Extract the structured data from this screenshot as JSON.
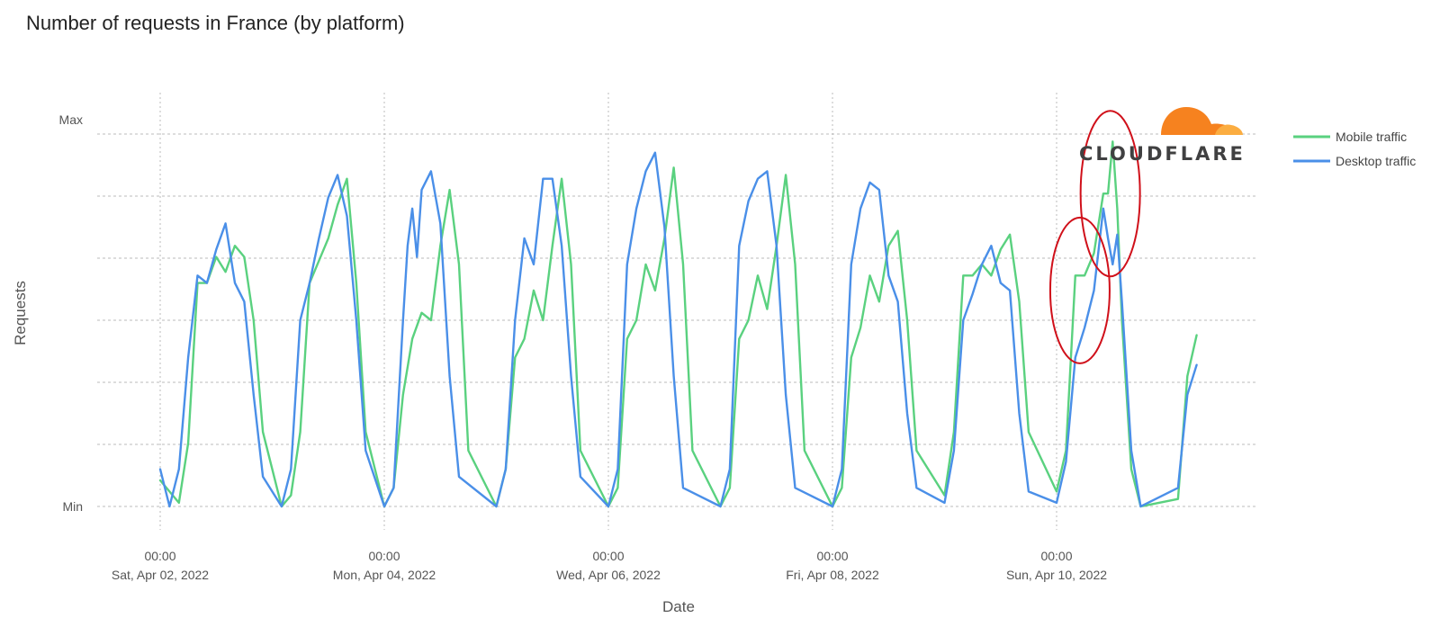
{
  "chart_data": {
    "type": "line",
    "title": "Number of requests in France (by platform)",
    "xlabel": "Date",
    "ylabel": "Requests",
    "y_ticks": [
      "Max",
      "Min"
    ],
    "x_ticks": [
      {
        "time": "00:00",
        "date": "Sat, Apr 02, 2022"
      },
      {
        "time": "00:00",
        "date": "Mon, Apr 04, 2022"
      },
      {
        "time": "00:00",
        "date": "Wed, Apr 06, 2022"
      },
      {
        "time": "00:00",
        "date": "Fri, Apr 08, 2022"
      },
      {
        "time": "00:00",
        "date": "Sun, Apr 10, 2022"
      }
    ],
    "x_range": [
      "2022-04-02T00:00",
      "2022-04-11T06:00"
    ],
    "y_range": [
      0,
      1
    ],
    "grid": true,
    "legend_position": "right",
    "series": [
      {
        "name": "Mobile traffic",
        "color": "#5ad17f",
        "points": [
          [
            "2022-04-02T00:00",
            0.07
          ],
          [
            "2022-04-02T04:00",
            0.01
          ],
          [
            "2022-04-02T06:00",
            0.17
          ],
          [
            "2022-04-02T08:00",
            0.6
          ],
          [
            "2022-04-02T10:00",
            0.6
          ],
          [
            "2022-04-02T12:00",
            0.67
          ],
          [
            "2022-04-02T14:00",
            0.63
          ],
          [
            "2022-04-02T16:00",
            0.7
          ],
          [
            "2022-04-02T18:00",
            0.67
          ],
          [
            "2022-04-02T20:00",
            0.5
          ],
          [
            "2022-04-02T22:00",
            0.2
          ],
          [
            "2022-04-03T02:00",
            0.0
          ],
          [
            "2022-04-03T04:00",
            0.03
          ],
          [
            "2022-04-03T06:00",
            0.2
          ],
          [
            "2022-04-03T08:00",
            0.6
          ],
          [
            "2022-04-03T10:00",
            0.66
          ],
          [
            "2022-04-03T12:00",
            0.72
          ],
          [
            "2022-04-03T14:00",
            0.81
          ],
          [
            "2022-04-03T16:00",
            0.88
          ],
          [
            "2022-04-03T17:00",
            0.74
          ],
          [
            "2022-04-03T18:00",
            0.6
          ],
          [
            "2022-04-03T20:00",
            0.2
          ],
          [
            "2022-04-04T00:00",
            0.0
          ],
          [
            "2022-04-04T02:00",
            0.05
          ],
          [
            "2022-04-04T04:00",
            0.3
          ],
          [
            "2022-04-04T06:00",
            0.45
          ],
          [
            "2022-04-04T08:00",
            0.52
          ],
          [
            "2022-04-04T10:00",
            0.5
          ],
          [
            "2022-04-04T12:00",
            0.7
          ],
          [
            "2022-04-04T14:00",
            0.85
          ],
          [
            "2022-04-04T16:00",
            0.65
          ],
          [
            "2022-04-04T18:00",
            0.15
          ],
          [
            "2022-04-05T00:00",
            0.0
          ],
          [
            "2022-04-05T02:00",
            0.1
          ],
          [
            "2022-04-05T04:00",
            0.4
          ],
          [
            "2022-04-05T06:00",
            0.45
          ],
          [
            "2022-04-05T08:00",
            0.58
          ],
          [
            "2022-04-05T10:00",
            0.5
          ],
          [
            "2022-04-05T12:00",
            0.7
          ],
          [
            "2022-04-05T14:00",
            0.88
          ],
          [
            "2022-04-05T16:00",
            0.65
          ],
          [
            "2022-04-05T18:00",
            0.15
          ],
          [
            "2022-04-06T00:00",
            0.0
          ],
          [
            "2022-04-06T02:00",
            0.05
          ],
          [
            "2022-04-06T04:00",
            0.45
          ],
          [
            "2022-04-06T06:00",
            0.5
          ],
          [
            "2022-04-06T08:00",
            0.65
          ],
          [
            "2022-04-06T10:00",
            0.58
          ],
          [
            "2022-04-06T12:00",
            0.72
          ],
          [
            "2022-04-06T14:00",
            0.91
          ],
          [
            "2022-04-06T16:00",
            0.65
          ],
          [
            "2022-04-06T18:00",
            0.15
          ],
          [
            "2022-04-07T00:00",
            0.0
          ],
          [
            "2022-04-07T02:00",
            0.05
          ],
          [
            "2022-04-07T04:00",
            0.45
          ],
          [
            "2022-04-07T06:00",
            0.5
          ],
          [
            "2022-04-07T08:00",
            0.62
          ],
          [
            "2022-04-07T10:00",
            0.53
          ],
          [
            "2022-04-07T12:00",
            0.7
          ],
          [
            "2022-04-07T14:00",
            0.89
          ],
          [
            "2022-04-07T16:00",
            0.65
          ],
          [
            "2022-04-07T18:00",
            0.15
          ],
          [
            "2022-04-08T00:00",
            0.0
          ],
          [
            "2022-04-08T02:00",
            0.05
          ],
          [
            "2022-04-08T04:00",
            0.4
          ],
          [
            "2022-04-08T06:00",
            0.48
          ],
          [
            "2022-04-08T08:00",
            0.62
          ],
          [
            "2022-04-08T10:00",
            0.55
          ],
          [
            "2022-04-08T12:00",
            0.7
          ],
          [
            "2022-04-08T14:00",
            0.74
          ],
          [
            "2022-04-08T16:00",
            0.5
          ],
          [
            "2022-04-08T18:00",
            0.15
          ],
          [
            "2022-04-09T00:00",
            0.03
          ],
          [
            "2022-04-09T02:00",
            0.2
          ],
          [
            "2022-04-09T04:00",
            0.62
          ],
          [
            "2022-04-09T06:00",
            0.62
          ],
          [
            "2022-04-09T08:00",
            0.65
          ],
          [
            "2022-04-09T10:00",
            0.62
          ],
          [
            "2022-04-09T12:00",
            0.69
          ],
          [
            "2022-04-09T14:00",
            0.73
          ],
          [
            "2022-04-09T16:00",
            0.55
          ],
          [
            "2022-04-09T18:00",
            0.2
          ],
          [
            "2022-04-10T00:00",
            0.04
          ],
          [
            "2022-04-10T02:00",
            0.15
          ],
          [
            "2022-04-10T04:00",
            0.62
          ],
          [
            "2022-04-10T06:00",
            0.62
          ],
          [
            "2022-04-10T08:00",
            0.68
          ],
          [
            "2022-04-10T10:00",
            0.84
          ],
          [
            "2022-04-10T11:00",
            0.84
          ],
          [
            "2022-04-10T12:00",
            0.98
          ],
          [
            "2022-04-10T13:00",
            0.8
          ],
          [
            "2022-04-10T14:00",
            0.5
          ],
          [
            "2022-04-10T16:00",
            0.1
          ],
          [
            "2022-04-10T18:00",
            0.0
          ],
          [
            "2022-04-11T02:00",
            0.02
          ],
          [
            "2022-04-11T04:00",
            0.35
          ],
          [
            "2022-04-11T06:00",
            0.46
          ]
        ]
      },
      {
        "name": "Desktop traffic",
        "color": "#4a8fe8",
        "points": [
          [
            "2022-04-02T00:00",
            0.1
          ],
          [
            "2022-04-02T02:00",
            0.0
          ],
          [
            "2022-04-02T04:00",
            0.1
          ],
          [
            "2022-04-02T06:00",
            0.4
          ],
          [
            "2022-04-02T08:00",
            0.62
          ],
          [
            "2022-04-02T10:00",
            0.6
          ],
          [
            "2022-04-02T12:00",
            0.69
          ],
          [
            "2022-04-02T14:00",
            0.76
          ],
          [
            "2022-04-02T16:00",
            0.6
          ],
          [
            "2022-04-02T18:00",
            0.55
          ],
          [
            "2022-04-02T20:00",
            0.3
          ],
          [
            "2022-04-02T22:00",
            0.08
          ],
          [
            "2022-04-03T02:00",
            0.0
          ],
          [
            "2022-04-03T04:00",
            0.1
          ],
          [
            "2022-04-03T06:00",
            0.5
          ],
          [
            "2022-04-03T08:00",
            0.6
          ],
          [
            "2022-04-03T10:00",
            0.72
          ],
          [
            "2022-04-03T12:00",
            0.83
          ],
          [
            "2022-04-03T14:00",
            0.89
          ],
          [
            "2022-04-03T16:00",
            0.78
          ],
          [
            "2022-04-03T18:00",
            0.5
          ],
          [
            "2022-04-03T20:00",
            0.15
          ],
          [
            "2022-04-04T00:00",
            0.0
          ],
          [
            "2022-04-04T02:00",
            0.05
          ],
          [
            "2022-04-04T04:00",
            0.5
          ],
          [
            "2022-04-04T05:00",
            0.7
          ],
          [
            "2022-04-04T06:00",
            0.8
          ],
          [
            "2022-04-04T07:00",
            0.67
          ],
          [
            "2022-04-04T08:00",
            0.85
          ],
          [
            "2022-04-04T10:00",
            0.9
          ],
          [
            "2022-04-04T12:00",
            0.76
          ],
          [
            "2022-04-04T14:00",
            0.35
          ],
          [
            "2022-04-04T16:00",
            0.08
          ],
          [
            "2022-04-05T00:00",
            0.0
          ],
          [
            "2022-04-05T02:00",
            0.1
          ],
          [
            "2022-04-05T04:00",
            0.5
          ],
          [
            "2022-04-05T06:00",
            0.72
          ],
          [
            "2022-04-05T08:00",
            0.65
          ],
          [
            "2022-04-05T10:00",
            0.88
          ],
          [
            "2022-04-05T12:00",
            0.88
          ],
          [
            "2022-04-05T14:00",
            0.7
          ],
          [
            "2022-04-05T16:00",
            0.35
          ],
          [
            "2022-04-05T18:00",
            0.08
          ],
          [
            "2022-04-06T00:00",
            0.0
          ],
          [
            "2022-04-06T02:00",
            0.1
          ],
          [
            "2022-04-06T04:00",
            0.65
          ],
          [
            "2022-04-06T06:00",
            0.8
          ],
          [
            "2022-04-06T08:00",
            0.9
          ],
          [
            "2022-04-06T10:00",
            0.95
          ],
          [
            "2022-04-06T12:00",
            0.75
          ],
          [
            "2022-04-06T14:00",
            0.35
          ],
          [
            "2022-04-06T16:00",
            0.05
          ],
          [
            "2022-04-07T00:00",
            0.0
          ],
          [
            "2022-04-07T02:00",
            0.1
          ],
          [
            "2022-04-07T04:00",
            0.7
          ],
          [
            "2022-04-07T06:00",
            0.82
          ],
          [
            "2022-04-07T08:00",
            0.88
          ],
          [
            "2022-04-07T10:00",
            0.9
          ],
          [
            "2022-04-07T12:00",
            0.7
          ],
          [
            "2022-04-07T14:00",
            0.3
          ],
          [
            "2022-04-07T16:00",
            0.05
          ],
          [
            "2022-04-08T00:00",
            0.0
          ],
          [
            "2022-04-08T02:00",
            0.1
          ],
          [
            "2022-04-08T04:00",
            0.65
          ],
          [
            "2022-04-08T06:00",
            0.8
          ],
          [
            "2022-04-08T08:00",
            0.87
          ],
          [
            "2022-04-08T10:00",
            0.85
          ],
          [
            "2022-04-08T12:00",
            0.62
          ],
          [
            "2022-04-08T14:00",
            0.55
          ],
          [
            "2022-04-08T16:00",
            0.25
          ],
          [
            "2022-04-08T18:00",
            0.05
          ],
          [
            "2022-04-09T00:00",
            0.01
          ],
          [
            "2022-04-09T02:00",
            0.15
          ],
          [
            "2022-04-09T04:00",
            0.5
          ],
          [
            "2022-04-09T06:00",
            0.57
          ],
          [
            "2022-04-09T08:00",
            0.65
          ],
          [
            "2022-04-09T10:00",
            0.7
          ],
          [
            "2022-04-09T12:00",
            0.6
          ],
          [
            "2022-04-09T14:00",
            0.58
          ],
          [
            "2022-04-09T16:00",
            0.25
          ],
          [
            "2022-04-09T18:00",
            0.04
          ],
          [
            "2022-04-10T00:00",
            0.01
          ],
          [
            "2022-04-10T02:00",
            0.12
          ],
          [
            "2022-04-10T04:00",
            0.4
          ],
          [
            "2022-04-10T06:00",
            0.48
          ],
          [
            "2022-04-10T08:00",
            0.58
          ],
          [
            "2022-04-10T10:00",
            0.8
          ],
          [
            "2022-04-10T11:00",
            0.72
          ],
          [
            "2022-04-10T12:00",
            0.65
          ],
          [
            "2022-04-10T13:00",
            0.73
          ],
          [
            "2022-04-10T14:00",
            0.55
          ],
          [
            "2022-04-10T16:00",
            0.15
          ],
          [
            "2022-04-10T18:00",
            0.0
          ],
          [
            "2022-04-11T02:00",
            0.05
          ],
          [
            "2022-04-11T04:00",
            0.3
          ],
          [
            "2022-04-11T06:00",
            0.38
          ]
        ]
      }
    ],
    "annotations": [
      {
        "type": "ellipse",
        "color": "#d0101a",
        "center": [
          "2022-04-10T05:00",
          0.58
        ]
      },
      {
        "type": "ellipse",
        "color": "#d0101a",
        "center": [
          "2022-04-10T11:30",
          0.84
        ]
      }
    ]
  },
  "logo": {
    "text": "CLOUDFLARE",
    "cloud_color": "#f6821f",
    "cloud_light": "#fbad41",
    "text_color": "#404041"
  },
  "colors": {
    "grid": "#bbbbbb",
    "text": "#555555"
  }
}
